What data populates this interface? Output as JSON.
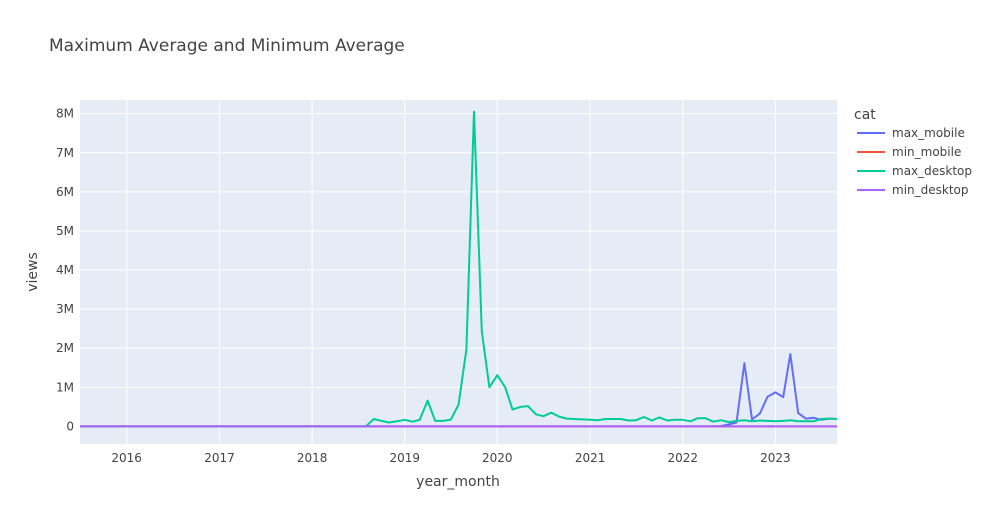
{
  "chart_data": {
    "type": "line",
    "title": "Maximum Average and Minimum Average",
    "xlabel": "year_month",
    "ylabel": "views",
    "x_tick_labels": [
      "2016",
      "2017",
      "2018",
      "2019",
      "2020",
      "2021",
      "2022",
      "2023"
    ],
    "y_tick_labels": [
      "0",
      "1M",
      "2M",
      "3M",
      "4M",
      "5M",
      "6M",
      "7M",
      "8M"
    ],
    "xlim": [
      "2015-07-01",
      "2023-09-01"
    ],
    "ylim": [
      -450000,
      8350000
    ],
    "grid": true,
    "plot_background": "#E5ECF6",
    "legend": {
      "title": "cat",
      "placement": "right",
      "entries": [
        "max_mobile",
        "min_mobile",
        "max_desktop",
        "min_desktop"
      ]
    },
    "series": [
      {
        "name": "max_mobile",
        "color": "#636EFA",
        "x": [
          "2015-07-01",
          "2022-05-01",
          "2022-06-01",
          "2022-07-01",
          "2022-08-01",
          "2022-09-01",
          "2022-10-01",
          "2022-11-01",
          "2022-12-01",
          "2023-01-01",
          "2023-02-01",
          "2023-03-01",
          "2023-04-01",
          "2023-05-01",
          "2023-06-01",
          "2023-07-01",
          "2023-08-01",
          "2023-09-01"
        ],
        "values": [
          0,
          0,
          10000,
          50000,
          100000,
          1620000,
          180000,
          330000,
          760000,
          870000,
          750000,
          1850000,
          340000,
          200000,
          220000,
          170000,
          200000,
          190000
        ]
      },
      {
        "name": "min_mobile",
        "color": "#EF553B",
        "x": [
          "2015-07-01",
          "2023-09-01"
        ],
        "values": [
          0,
          0
        ]
      },
      {
        "name": "max_desktop",
        "color": "#00CC96",
        "x": [
          "2015-07-01",
          "2018-07-01",
          "2018-08-01",
          "2018-09-01",
          "2018-10-01",
          "2018-11-01",
          "2018-12-01",
          "2019-01-01",
          "2019-02-01",
          "2019-03-01",
          "2019-04-01",
          "2019-05-01",
          "2019-06-01",
          "2019-07-01",
          "2019-08-01",
          "2019-09-01",
          "2019-10-01",
          "2019-11-01",
          "2019-12-01",
          "2020-01-01",
          "2020-02-01",
          "2020-03-01",
          "2020-04-01",
          "2020-05-01",
          "2020-06-01",
          "2020-07-01",
          "2020-08-01",
          "2020-09-01",
          "2020-10-01",
          "2020-11-01",
          "2020-12-01",
          "2021-01-01",
          "2021-02-01",
          "2021-03-01",
          "2021-04-01",
          "2021-05-01",
          "2021-06-01",
          "2021-07-01",
          "2021-08-01",
          "2021-09-01",
          "2021-10-01",
          "2021-11-01",
          "2021-12-01",
          "2022-01-01",
          "2022-02-01",
          "2022-03-01",
          "2022-04-01",
          "2022-05-01",
          "2022-06-01",
          "2022-07-01",
          "2022-08-01",
          "2022-09-01",
          "2022-10-01",
          "2022-11-01",
          "2022-12-01",
          "2023-01-01",
          "2023-02-01",
          "2023-03-01",
          "2023-04-01",
          "2023-05-01",
          "2023-06-01",
          "2023-07-01",
          "2023-08-01",
          "2023-09-01"
        ],
        "values": [
          0,
          0,
          0,
          190000,
          140000,
          100000,
          130000,
          170000,
          120000,
          170000,
          660000,
          140000,
          140000,
          170000,
          550000,
          1970000,
          8050000,
          2420000,
          1000000,
          1310000,
          1000000,
          430000,
          500000,
          520000,
          310000,
          260000,
          350000,
          250000,
          200000,
          190000,
          180000,
          170000,
          160000,
          190000,
          190000,
          190000,
          150000,
          160000,
          240000,
          150000,
          230000,
          150000,
          170000,
          170000,
          130000,
          210000,
          210000,
          120000,
          160000,
          110000,
          140000,
          160000,
          130000,
          150000,
          140000,
          130000,
          140000,
          160000,
          130000,
          130000,
          130000,
          190000,
          200000,
          190000
        ]
      },
      {
        "name": "min_desktop",
        "color": "#AB63FA",
        "x": [
          "2015-07-01",
          "2023-09-01"
        ],
        "values": [
          0,
          0
        ]
      }
    ]
  }
}
